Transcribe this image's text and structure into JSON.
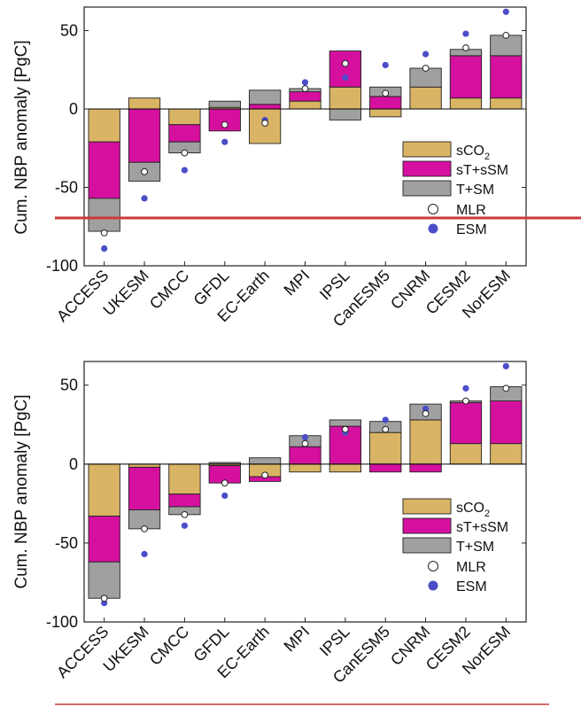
{
  "colors": {
    "sCO2": "#D9B465",
    "sTsSM": "#D5109F",
    "TSM": "#A0A0A0",
    "MLR_face": "#ffffff",
    "ESM": "#4B4DC8",
    "overlay_line": "#CC3A3A"
  },
  "chart_data": [
    {
      "type": "bar",
      "stacking": "diverging-stacked",
      "ylabel": "Cum. NBP anomaly [PgC]",
      "ylim": [
        -100,
        65
      ],
      "yticks": [
        50,
        0,
        -50,
        -100
      ],
      "grid": false,
      "legend_placement": "center-right",
      "categories": [
        "ACCESS",
        "UKESM",
        "CMCC",
        "GFDL",
        "EC-Earth",
        "MPI",
        "IPSL",
        "CanESM5",
        "CNRM",
        "CESM2",
        "NorESM"
      ],
      "series": [
        {
          "name": "sCO2",
          "label_main": "sCO",
          "label_sub": "2",
          "color_key": "sCO2",
          "values": [
            -21,
            7,
            -10,
            1,
            -22,
            5,
            14,
            -5,
            14,
            7,
            7
          ]
        },
        {
          "name": "sT+sSM",
          "label_main": "sT+sSM",
          "color_key": "sTsSM",
          "values": [
            -36,
            -34,
            -11,
            -14,
            3,
            6,
            23,
            8,
            0,
            27,
            27
          ]
        },
        {
          "name": "T+SM",
          "label_main": "T+SM",
          "color_key": "TSM",
          "values": [
            -21,
            -12,
            -7,
            4,
            9,
            2,
            -7,
            6,
            12,
            4,
            13
          ]
        }
      ],
      "MLR": [
        -79,
        -40,
        -28,
        -10,
        -9,
        13,
        29,
        10,
        26,
        39,
        47
      ],
      "ESM": [
        -89,
        -57,
        -39,
        -21,
        -7,
        17,
        20,
        28,
        35,
        48,
        62
      ],
      "markers": [
        {
          "name": "MLR",
          "label_main": "MLR"
        },
        {
          "name": "ESM",
          "label_main": "ESM"
        }
      ]
    },
    {
      "type": "bar",
      "stacking": "diverging-stacked",
      "ylabel": "Cum. NBP anomaly [PgC]",
      "ylim": [
        -100,
        65
      ],
      "yticks": [
        50,
        0,
        -50,
        -100
      ],
      "grid": false,
      "legend_placement": "bottom-right",
      "categories": [
        "ACCESS",
        "UKESM",
        "CMCC",
        "GFDL",
        "EC-Earth",
        "MPI",
        "IPSL",
        "CanESM5",
        "CNRM",
        "CESM2",
        "NorESM"
      ],
      "series": [
        {
          "name": "sCO2",
          "label_main": "sCO",
          "label_sub": "2",
          "color_key": "sCO2",
          "values": [
            -33,
            -2,
            -19,
            -1,
            -8,
            -5,
            -5,
            20,
            28,
            13,
            13
          ]
        },
        {
          "name": "sT+sSM",
          "label_main": "sT+sSM",
          "color_key": "sTsSM",
          "values": [
            -29,
            -27,
            -8,
            -11,
            -3,
            11,
            24,
            -5,
            -5,
            26,
            27
          ]
        },
        {
          "name": "T+SM",
          "label_main": "T+SM",
          "color_key": "TSM",
          "values": [
            -23,
            -12,
            -5,
            1,
            4,
            7,
            4,
            7,
            10,
            1,
            9
          ]
        }
      ],
      "MLR": [
        -85,
        -41,
        -32,
        -12,
        -7,
        13,
        22,
        22,
        32,
        40,
        48
      ],
      "ESM": [
        -88,
        -57,
        -39,
        -20,
        -7,
        17,
        20,
        28,
        35,
        48,
        62
      ],
      "markers": [
        {
          "name": "MLR",
          "label_main": "MLR"
        },
        {
          "name": "ESM",
          "label_main": "ESM"
        }
      ]
    }
  ]
}
